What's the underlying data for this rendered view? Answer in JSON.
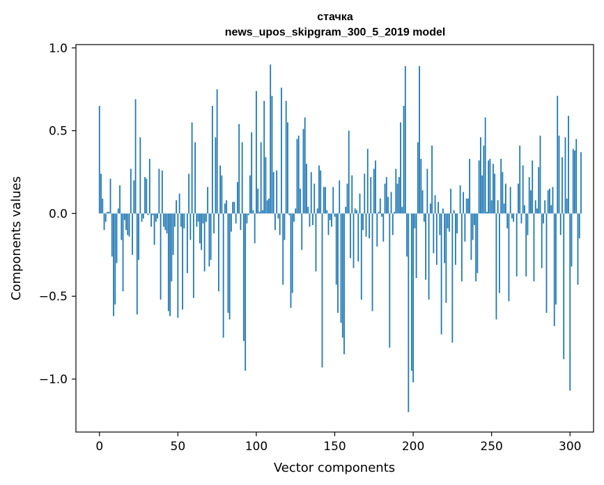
{
  "chart_data": {
    "type": "bar",
    "title": "стачка",
    "subtitle": "news_upos_skipgram_300_5_2019 model",
    "xlabel": "Vector components",
    "ylabel": "Components values",
    "xlim": [
      -15,
      315
    ],
    "ylim": [
      -1.32,
      1.02
    ],
    "x_ticks": [
      0,
      50,
      100,
      150,
      200,
      250,
      300
    ],
    "x_tick_labels": [
      "0",
      "50",
      "100",
      "150",
      "200",
      "250",
      "300"
    ],
    "y_ticks": [
      1.0,
      0.5,
      0.0,
      -0.5,
      -1.0
    ],
    "y_tick_labels": [
      "1.0",
      "0.5",
      "0.0",
      "−0.5",
      "−1.0"
    ],
    "grid": false,
    "bar_color": "#1f77b4",
    "series": [
      {
        "values": [
          0.65,
          0.24,
          0.09,
          -0.1,
          -0.05,
          0.01,
          0.01,
          0.21,
          -0.26,
          -0.62,
          -0.55,
          -0.3,
          0.03,
          0.17,
          -0.16,
          -0.47,
          -0.04,
          -0.1,
          -0.13,
          -0.14,
          0.27,
          -0.25,
          0.2,
          0.69,
          -0.61,
          -0.28,
          0.46,
          -0.05,
          -0.03,
          0.22,
          0.21,
          -0.01,
          0.33,
          -0.08,
          -0.01,
          -0.19,
          -0.05,
          -0.03,
          0.27,
          -0.52,
          0.26,
          -0.08,
          -0.1,
          -0.12,
          -0.59,
          -0.62,
          -0.41,
          -0.25,
          -0.08,
          0.08,
          -0.63,
          0.12,
          -0.08,
          -0.58,
          -0.09,
          0.0,
          -0.36,
          0.24,
          -0.16,
          0.55,
          -0.51,
          0.43,
          -0.08,
          -0.05,
          -0.18,
          -0.22,
          -0.06,
          -0.35,
          -0.05,
          0.16,
          -0.32,
          -0.28,
          0.65,
          -0.12,
          0.46,
          0.75,
          -0.47,
          0.29,
          0.23,
          -0.75,
          0.06,
          0.08,
          -0.6,
          -0.64,
          -0.11,
          0.07,
          0.07,
          -0.06,
          0.19,
          0.54,
          -0.1,
          0.43,
          -0.77,
          -0.95,
          -0.06,
          -0.01,
          0.23,
          0.49,
          0.02,
          -0.18,
          0.74,
          0.15,
          0.01,
          0.43,
          0.02,
          0.68,
          0.34,
          0.08,
          0.09,
          0.9,
          0.71,
          0.25,
          -0.1,
          0.26,
          -0.03,
          -0.13,
          0.76,
          -0.43,
          -0.16,
          0.68,
          0.55,
          -0.01,
          -0.57,
          -0.48,
          -0.05,
          0.03,
          0.45,
          0.47,
          0.15,
          -0.22,
          0.51,
          0.58,
          0.3,
          0.04,
          -0.08,
          0.25,
          -0.07,
          0.18,
          -0.35,
          0.03,
          0.29,
          0.26,
          -0.93,
          0.16,
          0.16,
          0.02,
          -0.13,
          -0.04,
          -0.08,
          0.16,
          -0.02,
          -0.43,
          -0.6,
          0.2,
          -0.66,
          -0.75,
          -0.85,
          0.04,
          0.18,
          0.5,
          -0.27,
          0.23,
          -0.33,
          0.03,
          0.02,
          -0.29,
          0.12,
          -0.52,
          -0.1,
          0.24,
          -0.14,
          0.39,
          -0.15,
          0.22,
          -0.59,
          0.27,
          0.32,
          -0.2,
          0.01,
          0.09,
          -0.02,
          -0.17,
          0.18,
          0.22,
          0.1,
          -0.81,
          0.13,
          -0.13,
          0.01,
          0.27,
          0.18,
          0.22,
          0.55,
          0.04,
          0.65,
          0.89,
          -0.26,
          -1.2,
          0.0,
          -0.95,
          -1.02,
          -0.09,
          -0.39,
          0.43,
          0.89,
          0.33,
          0.14,
          -0.05,
          -0.4,
          0.27,
          -0.52,
          0.06,
          0.41,
          -0.24,
          0.11,
          -0.31,
          0.07,
          -0.13,
          -0.73,
          0.03,
          -0.3,
          -0.54,
          -0.09,
          -0.11,
          0.15,
          -0.78,
          0.02,
          -0.31,
          -0.12,
          0.0,
          0.17,
          -0.41,
          0.13,
          -0.17,
          0.09,
          0.09,
          0.33,
          -0.28,
          -0.16,
          -0.07,
          -0.41,
          -0.36,
          0.32,
          0.46,
          0.23,
          0.41,
          0.58,
          0.01,
          0.32,
          0.33,
          0.08,
          0.3,
          0.24,
          -0.64,
          0.08,
          -0.48,
          0.33,
          0.25,
          0.06,
          0.18,
          -0.09,
          -0.53,
          0.16,
          -0.03,
          -0.05,
          0.0,
          -0.38,
          0.18,
          0.41,
          -0.06,
          0.29,
          0.05,
          -0.38,
          -0.13,
          0.22,
          0.14,
          0.32,
          -0.41,
          0.08,
          0.03,
          0.28,
          0.47,
          -0.33,
          -0.06,
          0.08,
          -0.6,
          0.14,
          0.15,
          0.05,
          0.16,
          -0.68,
          -0.55,
          0.71,
          0.47,
          -0.13,
          0.34,
          -0.88,
          0.46,
          0.09,
          0.59,
          -1.07,
          -0.32,
          0.39,
          0.38,
          0.45,
          -0.43,
          -0.15,
          0.37
        ]
      }
    ]
  }
}
